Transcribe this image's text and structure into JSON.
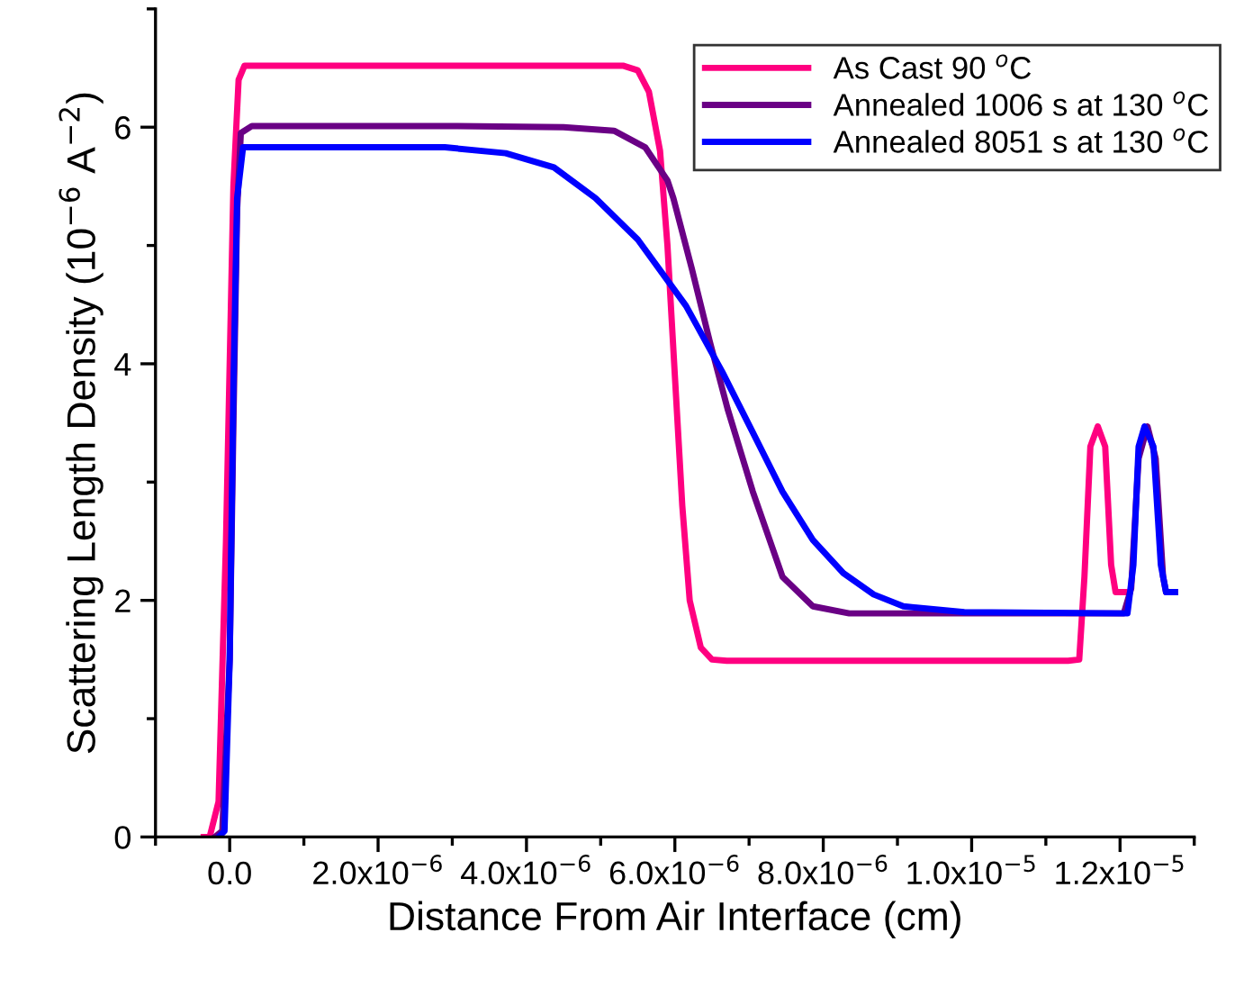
{
  "chart_data": {
    "type": "line",
    "xlabel": "Distance From Air Interface (cm)",
    "ylabel": "Scattering Length Density (10$^{−6}$ A$^{−2}$)",
    "xlim": [
      -1e-06,
      1.3e-05
    ],
    "xticks": [
      {
        "value": 0,
        "label": "0.0"
      },
      {
        "value": 2e-06,
        "label": "2.0x10$^{−6}$"
      },
      {
        "value": 4e-06,
        "label": "4.0x10$^{−6}$"
      },
      {
        "value": 6e-06,
        "label": "6.0x10$^{−6}$"
      },
      {
        "value": 8e-06,
        "label": "8.0x10$^{−6}$"
      },
      {
        "value": 1e-05,
        "label": "1.0x10$^{−5}$"
      },
      {
        "value": 1.2e-05,
        "label": "1.2x10$^{−5}$"
      }
    ],
    "ylim": [
      0,
      7
    ],
    "yticks": [
      0,
      2,
      4,
      6
    ],
    "grid": false,
    "legend": "top right",
    "marker": "none",
    "line_style": "solid",
    "series": [
      {
        "name": "As Cast 90 $^{o}$C",
        "color": "#ff0080",
        "x": [
          -3.5e-07,
          -2.7e-07,
          -1.5e-07,
          -5e-08,
          5e-08,
          1.2e-07,
          2e-07,
          4e-07,
          3e-06,
          5.3e-06,
          5.5e-06,
          5.65e-06,
          5.8e-06,
          5.9e-06,
          6e-06,
          6.1e-06,
          6.2e-06,
          6.35e-06,
          6.5e-06,
          6.7e-06,
          7e-06,
          1.13e-05,
          1.145e-05,
          1.152e-05,
          1.16e-05,
          1.17e-05,
          1.18e-05,
          1.188e-05,
          1.194e-05,
          1.206e-05
        ],
        "values": [
          0,
          0,
          0.3,
          2.5,
          5.5,
          6.4,
          6.52,
          6.52,
          6.52,
          6.52,
          6.48,
          6.3,
          5.8,
          5.0,
          3.9,
          2.8,
          2.0,
          1.6,
          1.5,
          1.49,
          1.49,
          1.49,
          1.5,
          2.2,
          3.3,
          3.47,
          3.3,
          2.3,
          2.07,
          2.07
        ]
      },
      {
        "name": "Annealed 1006 s at 130 $^{o}$C",
        "color": "#6a0085",
        "x": [
          -2e-07,
          -1e-07,
          0,
          5e-08,
          1e-07,
          1.5e-07,
          3e-07,
          3e-06,
          4.5e-06,
          5.18e-06,
          5.6e-06,
          5.9e-06,
          5.98e-06,
          6.23e-06,
          6.47e-06,
          6.71e-06,
          7.05e-06,
          7.45e-06,
          7.86e-06,
          8.35e-06,
          9e-06,
          1.205e-05,
          1.215e-05,
          1.225e-05,
          1.237e-05,
          1.248e-05,
          1.258e-05,
          1.262e-05,
          1.274e-05
        ],
        "values": [
          0,
          0.05,
          1.5,
          3.5,
          5.3,
          5.95,
          6.01,
          6.01,
          6.0,
          5.97,
          5.83,
          5.55,
          5.4,
          4.8,
          4.19,
          3.62,
          2.92,
          2.2,
          1.95,
          1.89,
          1.89,
          1.89,
          2.1,
          3.2,
          3.47,
          3.2,
          2.2,
          2.07,
          2.07
        ]
      },
      {
        "name": "Annealed 8051 s at 130 $^{o}$C",
        "color": "#0000ff",
        "x": [
          -1.5e-07,
          -7e-08,
          0,
          5e-08,
          1e-07,
          1.8e-07,
          4e-07,
          2.9e-06,
          3.72e-06,
          4.37e-06,
          4.93e-06,
          5.5e-06,
          6.15e-06,
          6.64e-06,
          7.05e-06,
          7.45e-06,
          7.86e-06,
          8.27e-06,
          8.68e-06,
          9.08e-06,
          9.9e-06,
          1.21e-05,
          1.218e-05,
          1.225e-05,
          1.233e-05,
          1.245e-05,
          1.255e-05,
          1.262e-05,
          1.274e-05
        ],
        "values": [
          0,
          0.05,
          1.5,
          3.8,
          5.4,
          5.83,
          5.83,
          5.83,
          5.78,
          5.66,
          5.4,
          5.05,
          4.49,
          3.93,
          3.42,
          2.92,
          2.51,
          2.23,
          2.05,
          1.95,
          1.9,
          1.89,
          2.3,
          3.3,
          3.47,
          3.3,
          2.3,
          2.07,
          2.07
        ]
      }
    ]
  }
}
